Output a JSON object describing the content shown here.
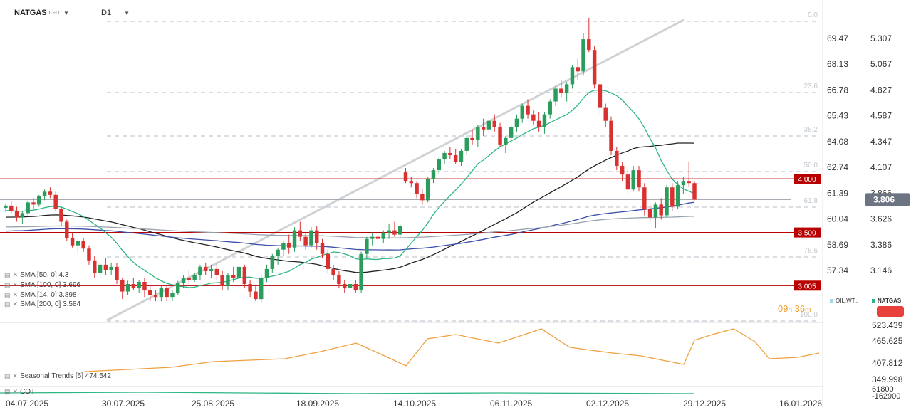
{
  "toolbar": {
    "symbol": "NATGAS",
    "symbol_suffix": "CFD",
    "timeframe": "D1"
  },
  "indicators": {
    "sma": [
      {
        "label": "SMA [50, 0] 4.3",
        "period": 50,
        "color": "#222222",
        "last": 4.3
      },
      {
        "label": "SMA [100, 0] 3.696",
        "period": 100,
        "color": "#3d4fa8",
        "last": 3.696
      },
      {
        "label": "SMA [14, 0] 3.898",
        "period": 14,
        "color": "#2db682",
        "last": 3.898
      },
      {
        "label": "SMA [200, 0] 3.584",
        "period": 200,
        "color": "#9aa3ad",
        "last": 3.584
      }
    ],
    "seasonal": {
      "label": "Seasonal Trends [5] 474.542",
      "color": "#f0a040"
    },
    "cot": {
      "label": "COT",
      "color": "#2db682"
    }
  },
  "comparison": {
    "oil_label": "OIL.WT..",
    "natgas_label": "NATGAS",
    "oil_color": "#a8d4ee",
    "natgas_color": "#2db682"
  },
  "timer": {
    "h": "09",
    "h_unit": "h",
    "m": "36",
    "m_unit": "m"
  },
  "current_price": {
    "label": "3.806",
    "value": 3.806,
    "color": "#6b7480"
  },
  "horizontal_levels": [
    {
      "label": "4.000",
      "value": 4.0,
      "color": "#b80000"
    },
    {
      "label": "3.500",
      "value": 3.5,
      "color": "#b80000"
    },
    {
      "label": "3.005",
      "value": 3.005,
      "color": "#b80000"
    }
  ],
  "chart_data": {
    "type": "candlestick",
    "x_ticks": [
      "04.07.2025",
      "30.07.2025",
      "25.08.2025",
      "18.09.2025",
      "14.10.2025",
      "06.11.2025",
      "02.12.2025",
      "29.12.2025",
      "16.01.2026"
    ],
    "price_axis": [
      "5.307",
      "5.067",
      "4.827",
      "4.587",
      "4.347",
      "4.107",
      "3.866",
      "3.626",
      "3.386",
      "3.146"
    ],
    "left_axis": [
      "69.47",
      "68.13",
      "66.78",
      "65.43",
      "64.08",
      "62.74",
      "61.39",
      "60.04",
      "58.69",
      "57.34"
    ],
    "fibonacci": [
      "0.0",
      "23.6",
      "38.2",
      "50.0",
      "61.8",
      "78.6",
      "100.0"
    ],
    "seasonal_axis": [
      "523.439",
      "465.625",
      "407.812",
      "349.998"
    ],
    "cot_axis": [
      "61800",
      "-162900"
    ],
    "ylim": [
      2.9,
      5.55
    ],
    "candles": [
      [
        3.73,
        3.77,
        3.69,
        3.75
      ],
      [
        3.75,
        3.79,
        3.68,
        3.7
      ],
      [
        3.7,
        3.74,
        3.6,
        3.64
      ],
      [
        3.64,
        3.7,
        3.58,
        3.68
      ],
      [
        3.68,
        3.8,
        3.66,
        3.78
      ],
      [
        3.78,
        3.82,
        3.72,
        3.76
      ],
      [
        3.76,
        3.85,
        3.74,
        3.84
      ],
      [
        3.84,
        3.9,
        3.8,
        3.88
      ],
      [
        3.88,
        3.92,
        3.82,
        3.85
      ],
      [
        3.85,
        3.88,
        3.7,
        3.72
      ],
      [
        3.72,
        3.74,
        3.56,
        3.6
      ],
      [
        3.6,
        3.62,
        3.42,
        3.45
      ],
      [
        3.45,
        3.5,
        3.36,
        3.38
      ],
      [
        3.38,
        3.44,
        3.3,
        3.42
      ],
      [
        3.42,
        3.45,
        3.32,
        3.35
      ],
      [
        3.35,
        3.38,
        3.2,
        3.24
      ],
      [
        3.24,
        3.28,
        3.08,
        3.12
      ],
      [
        3.12,
        3.22,
        3.08,
        3.2
      ],
      [
        3.2,
        3.26,
        3.1,
        3.15
      ],
      [
        3.15,
        3.22,
        3.1,
        3.18
      ],
      [
        3.18,
        3.22,
        3.02,
        3.06
      ],
      [
        3.06,
        3.08,
        2.88,
        2.95
      ],
      [
        2.95,
        3.05,
        2.92,
        3.02
      ],
      [
        3.02,
        3.08,
        2.96,
        2.98
      ],
      [
        2.98,
        3.06,
        2.94,
        3.04
      ],
      [
        3.04,
        3.08,
        2.9,
        2.96
      ],
      [
        2.96,
        3.0,
        2.86,
        2.92
      ],
      [
        2.92,
        2.96,
        2.86,
        2.9
      ],
      [
        2.9,
        3.0,
        2.86,
        2.98
      ],
      [
        2.98,
        3.0,
        2.86,
        2.9
      ],
      [
        2.9,
        2.96,
        2.86,
        2.94
      ],
      [
        2.94,
        3.05,
        2.92,
        3.03
      ],
      [
        3.03,
        3.1,
        2.98,
        3.08
      ],
      [
        3.08,
        3.15,
        3.02,
        3.06
      ],
      [
        3.06,
        3.12,
        3.04,
        3.1
      ],
      [
        3.1,
        3.2,
        3.06,
        3.18
      ],
      [
        3.18,
        3.22,
        3.1,
        3.14
      ],
      [
        3.14,
        3.2,
        3.08,
        3.16
      ],
      [
        3.16,
        3.22,
        3.06,
        3.1
      ],
      [
        3.1,
        3.14,
        2.96,
        3.0
      ],
      [
        3.0,
        3.12,
        2.96,
        3.1
      ],
      [
        3.1,
        3.18,
        3.04,
        3.08
      ],
      [
        3.08,
        3.2,
        3.02,
        3.18
      ],
      [
        3.18,
        3.2,
        2.98,
        3.02
      ],
      [
        3.02,
        3.06,
        2.9,
        2.95
      ],
      [
        2.95,
        3.0,
        2.86,
        2.88
      ],
      [
        2.88,
        3.1,
        2.85,
        3.08
      ],
      [
        3.08,
        3.2,
        3.04,
        3.16
      ],
      [
        3.16,
        3.3,
        3.12,
        3.28
      ],
      [
        3.28,
        3.36,
        3.2,
        3.34
      ],
      [
        3.34,
        3.42,
        3.28,
        3.4
      ],
      [
        3.4,
        3.48,
        3.3,
        3.36
      ],
      [
        3.36,
        3.55,
        3.32,
        3.52
      ],
      [
        3.52,
        3.6,
        3.42,
        3.46
      ],
      [
        3.46,
        3.5,
        3.34,
        3.38
      ],
      [
        3.38,
        3.55,
        3.36,
        3.52
      ],
      [
        3.52,
        3.56,
        3.34,
        3.4
      ],
      [
        3.4,
        3.44,
        3.26,
        3.3
      ],
      [
        3.3,
        3.34,
        3.12,
        3.16
      ],
      [
        3.16,
        3.2,
        3.06,
        3.1
      ],
      [
        3.1,
        3.14,
        2.98,
        3.02
      ],
      [
        3.02,
        3.06,
        2.94,
        2.98
      ],
      [
        2.98,
        3.04,
        2.9,
        3.02
      ],
      [
        3.02,
        3.06,
        2.94,
        2.96
      ],
      [
        2.96,
        3.32,
        2.94,
        3.3
      ],
      [
        3.3,
        3.46,
        3.26,
        3.44
      ],
      [
        3.44,
        3.5,
        3.38,
        3.46
      ],
      [
        3.46,
        3.5,
        3.4,
        3.44
      ],
      [
        3.44,
        3.52,
        3.4,
        3.5
      ],
      [
        3.5,
        3.58,
        3.44,
        3.52
      ],
      [
        3.52,
        3.6,
        3.46,
        3.48
      ],
      [
        3.48,
        3.58,
        3.44,
        3.56
      ],
      [
        4.06,
        4.1,
        3.96,
        3.98
      ],
      [
        3.98,
        4.02,
        3.92,
        3.96
      ],
      [
        3.96,
        3.98,
        3.82,
        3.86
      ],
      [
        3.86,
        3.9,
        3.76,
        3.8
      ],
      [
        3.8,
        4.02,
        3.78,
        4.0
      ],
      [
        4.0,
        4.1,
        3.96,
        4.08
      ],
      [
        4.08,
        4.2,
        4.04,
        4.18
      ],
      [
        4.18,
        4.26,
        4.14,
        4.24
      ],
      [
        4.24,
        4.3,
        4.18,
        4.22
      ],
      [
        4.22,
        4.28,
        4.14,
        4.16
      ],
      [
        4.16,
        4.28,
        4.12,
        4.26
      ],
      [
        4.26,
        4.4,
        4.22,
        4.38
      ],
      [
        4.38,
        4.46,
        4.32,
        4.36
      ],
      [
        4.36,
        4.5,
        4.3,
        4.48
      ],
      [
        4.48,
        4.56,
        4.4,
        4.46
      ],
      [
        4.46,
        4.58,
        4.42,
        4.54
      ],
      [
        4.54,
        4.6,
        4.44,
        4.48
      ],
      [
        4.48,
        4.52,
        4.3,
        4.32
      ],
      [
        4.32,
        4.4,
        4.24,
        4.38
      ],
      [
        4.38,
        4.5,
        4.34,
        4.48
      ],
      [
        4.48,
        4.6,
        4.44,
        4.56
      ],
      [
        4.56,
        4.7,
        4.52,
        4.68
      ],
      [
        4.68,
        4.74,
        4.56,
        4.6
      ],
      [
        4.6,
        4.64,
        4.5,
        4.54
      ],
      [
        4.54,
        4.62,
        4.44,
        4.48
      ],
      [
        4.48,
        4.62,
        4.42,
        4.6
      ],
      [
        4.6,
        4.74,
        4.56,
        4.72
      ],
      [
        4.72,
        4.86,
        4.68,
        4.84
      ],
      [
        4.84,
        4.92,
        4.76,
        4.8
      ],
      [
        4.8,
        4.9,
        4.72,
        4.88
      ],
      [
        4.88,
        5.06,
        4.84,
        5.04
      ],
      [
        5.04,
        5.12,
        4.92,
        5.0
      ],
      [
        5.0,
        5.36,
        4.96,
        5.3
      ],
      [
        5.3,
        5.5,
        5.18,
        5.2
      ],
      [
        5.2,
        5.24,
        4.84,
        4.88
      ],
      [
        4.88,
        4.92,
        4.6,
        4.66
      ],
      [
        4.66,
        4.7,
        4.48,
        4.54
      ],
      [
        4.54,
        4.58,
        4.22,
        4.26
      ],
      [
        4.26,
        4.3,
        4.08,
        4.12
      ],
      [
        4.12,
        4.16,
        3.98,
        4.04
      ],
      [
        4.04,
        4.1,
        3.86,
        3.9
      ],
      [
        3.9,
        4.12,
        3.88,
        4.08
      ],
      [
        4.08,
        4.12,
        3.88,
        3.92
      ],
      [
        3.92,
        3.96,
        3.66,
        3.72
      ],
      [
        3.72,
        3.76,
        3.6,
        3.64
      ],
      [
        3.64,
        3.78,
        3.54,
        3.76
      ],
      [
        3.76,
        3.82,
        3.62,
        3.66
      ],
      [
        3.66,
        3.94,
        3.64,
        3.92
      ],
      [
        3.92,
        3.96,
        3.7,
        3.74
      ],
      [
        3.74,
        3.98,
        3.72,
        3.94
      ],
      [
        3.94,
        4.02,
        3.86,
        3.98
      ],
      [
        3.98,
        4.16,
        3.92,
        3.96
      ],
      [
        3.96,
        3.98,
        3.8,
        3.806
      ]
    ]
  }
}
